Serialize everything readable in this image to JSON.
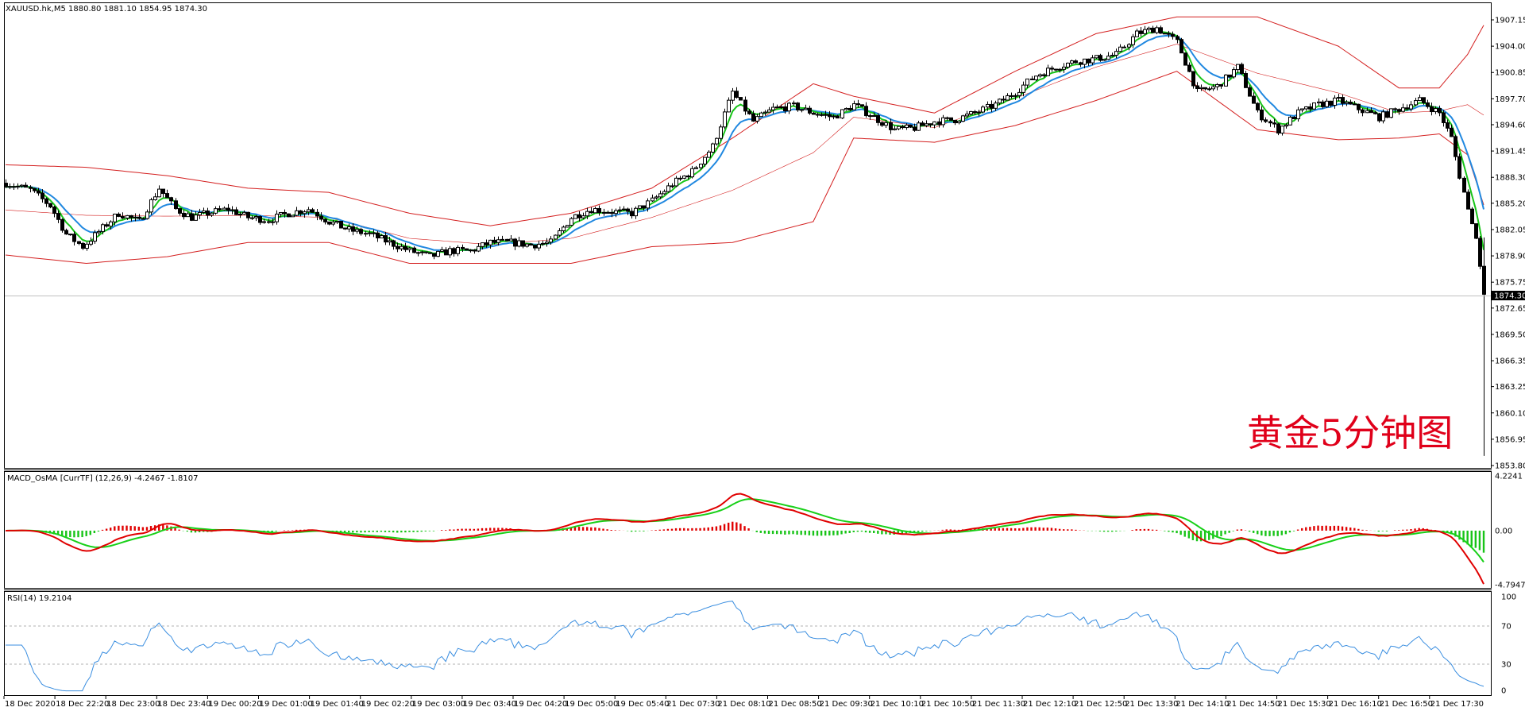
{
  "main_panel": {
    "symbol_line": "XAUUSD.hk,M5  1880.80 1881.10 1854.95 1874.30",
    "watermark": "黄金5分钟图",
    "current_price_label": "1874.30",
    "y_ticks": [
      "1907.15",
      "1904.00",
      "1900.85",
      "1897.70",
      "1894.60",
      "1891.45",
      "1888.30",
      "1885.20",
      "1882.05",
      "1878.90",
      "1875.75",
      "1872.65",
      "1869.50",
      "1866.35",
      "1863.25",
      "1860.10",
      "1856.95",
      "1853.80"
    ]
  },
  "macd_panel": {
    "title": "MACD_OsMA [CurrTF] (12,26,9) -4.2467 -1.8107",
    "y_ticks": [
      "4.2241",
      "0.00",
      "-4.7947"
    ]
  },
  "rsi_panel": {
    "title": "RSI(14) 19.2104",
    "y_ticks": [
      "100",
      "70",
      "30",
      "0"
    ]
  },
  "time_axis": [
    "18 Dec 2020",
    "18 Dec 22:20",
    "18 Dec 23:00",
    "18 Dec 23:40",
    "19 Dec 00:20",
    "19 Dec 01:00",
    "19 Dec 01:40",
    "19 Dec 02:20",
    "19 Dec 03:00",
    "19 Dec 03:40",
    "19 Dec 04:20",
    "19 Dec 05:00",
    "19 Dec 05:40",
    "21 Dec 07:30",
    "21 Dec 08:10",
    "21 Dec 08:50",
    "21 Dec 09:30",
    "21 Dec 10:10",
    "21 Dec 10:50",
    "21 Dec 11:30",
    "21 Dec 12:10",
    "21 Dec 12:50",
    "21 Dec 13:30",
    "21 Dec 14:10",
    "21 Dec 14:50",
    "21 Dec 15:30",
    "21 Dec 16:10",
    "21 Dec 16:50",
    "21 Dec 17:30"
  ],
  "colors": {
    "bb": "#d42020",
    "ma_fast": "#18c418",
    "ma_slow": "#2088e0",
    "macd_line": "#e00000",
    "signal_line": "#18d018",
    "hist_up": "#e00000",
    "hist_down": "#18c418",
    "rsi": "#3a8ee0",
    "panel_border": "#000000",
    "panel_sep": "#808080"
  },
  "chart_data": {
    "type": "candlestick",
    "price_anchors": [
      [
        0,
        1887.6
      ],
      [
        6,
        1886.8
      ],
      [
        11,
        1884.9
      ],
      [
        15,
        1881.5
      ],
      [
        19,
        1880.0
      ],
      [
        23,
        1881.8
      ],
      [
        28,
        1884.0
      ],
      [
        33,
        1883.0
      ],
      [
        38,
        1887.0
      ],
      [
        42,
        1884.5
      ],
      [
        46,
        1883.5
      ],
      [
        50,
        1884.0
      ],
      [
        55,
        1884.5
      ],
      [
        60,
        1883.5
      ],
      [
        65,
        1883.2
      ],
      [
        70,
        1884.0
      ],
      [
        75,
        1884.5
      ],
      [
        80,
        1883.0
      ],
      [
        85,
        1882.0
      ],
      [
        90,
        1881.5
      ],
      [
        95,
        1880.5
      ],
      [
        100,
        1879.5
      ],
      [
        105,
        1878.8
      ],
      [
        110,
        1879.5
      ],
      [
        115,
        1879.5
      ],
      [
        120,
        1880.5
      ],
      [
        125,
        1880.5
      ],
      [
        130,
        1880.2
      ],
      [
        135,
        1880.5
      ],
      [
        140,
        1883.5
      ],
      [
        145,
        1884.5
      ],
      [
        150,
        1884.2
      ],
      [
        155,
        1884.0
      ],
      [
        160,
        1885.5
      ],
      [
        165,
        1887.5
      ],
      [
        170,
        1889.0
      ],
      [
        175,
        1892.0
      ],
      [
        180,
        1898.5
      ],
      [
        185,
        1895.0
      ],
      [
        190,
        1896.5
      ],
      [
        195,
        1896.8
      ],
      [
        200,
        1896.0
      ],
      [
        205,
        1895.5
      ],
      [
        210,
        1897.0
      ],
      [
        215,
        1895.5
      ],
      [
        220,
        1894.0
      ],
      [
        225,
        1894.2
      ],
      [
        230,
        1895.0
      ],
      [
        235,
        1895.2
      ],
      [
        240,
        1896.0
      ],
      [
        245,
        1897.0
      ],
      [
        250,
        1898.5
      ],
      [
        255,
        1900.5
      ],
      [
        260,
        1901.5
      ],
      [
        265,
        1902.2
      ],
      [
        270,
        1902.5
      ],
      [
        275,
        1903.0
      ],
      [
        280,
        1905.5
      ],
      [
        285,
        1906.2
      ],
      [
        290,
        1904.5
      ],
      [
        295,
        1898.5
      ],
      [
        300,
        1899.2
      ],
      [
        305,
        1901.5
      ],
      [
        310,
        1896.0
      ],
      [
        315,
        1894.0
      ],
      [
        320,
        1896.0
      ],
      [
        325,
        1897.0
      ],
      [
        330,
        1897.5
      ],
      [
        335,
        1896.5
      ],
      [
        340,
        1895.5
      ],
      [
        345,
        1896.5
      ],
      [
        350,
        1897.5
      ],
      [
        355,
        1896.0
      ],
      [
        358,
        1893.0
      ],
      [
        360,
        1888.5
      ],
      [
        362,
        1884.5
      ],
      [
        364,
        1881.0
      ],
      [
        366,
        1874.3
      ]
    ],
    "bb_anchors": [
      [
        0,
        1889.8,
        1879.0
      ],
      [
        20,
        1889.5,
        1878.0
      ],
      [
        40,
        1888.5,
        1878.8
      ],
      [
        60,
        1887.0,
        1880.5
      ],
      [
        80,
        1886.5,
        1880.5
      ],
      [
        100,
        1884.0,
        1878.0
      ],
      [
        120,
        1882.5,
        1878.0
      ],
      [
        140,
        1884.0,
        1878.0
      ],
      [
        160,
        1887.0,
        1880.0
      ],
      [
        180,
        1893.0,
        1880.5
      ],
      [
        200,
        1899.5,
        1883.0
      ],
      [
        210,
        1898.0,
        1893.0
      ],
      [
        230,
        1896.0,
        1892.5
      ],
      [
        250,
        1901.0,
        1894.5
      ],
      [
        270,
        1905.5,
        1897.5
      ],
      [
        290,
        1907.5,
        1901.0
      ],
      [
        310,
        1907.5,
        1894.0
      ],
      [
        330,
        1904.0,
        1892.8
      ],
      [
        345,
        1899.0,
        1893.0
      ],
      [
        355,
        1899.0,
        1893.5
      ],
      [
        362,
        1903.0,
        1891.0
      ],
      [
        366,
        1906.5,
        1885.0
      ]
    ],
    "macd_range": [
      -4.7947,
      4.2241
    ],
    "rsi_range": [
      0,
      100
    ],
    "rsi_levels": [
      30,
      70
    ]
  }
}
